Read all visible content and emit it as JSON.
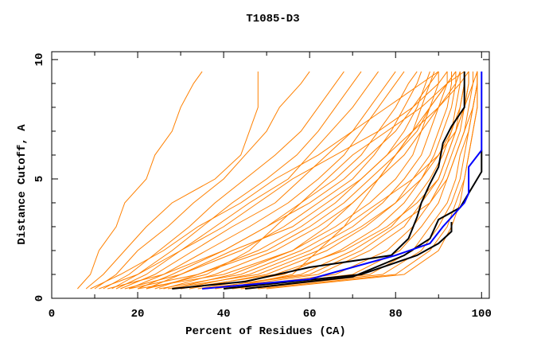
{
  "chart_data": {
    "type": "line",
    "title": "T1085-D3",
    "xlabel": "Percent of Residues (CA)",
    "ylabel": "Distance Cutoff, A",
    "xlim": [
      0,
      101.8
    ],
    "ylim": [
      0,
      10.33
    ],
    "xticks": [
      0,
      20,
      40,
      60,
      80,
      100
    ],
    "yticks": [
      0,
      5,
      10
    ],
    "grid": false,
    "colors": {
      "models": "#ff8000",
      "highlight_black": "#000000",
      "highlight_blue": "#0000ff"
    },
    "orange_cutoffs": [
      0.4,
      1,
      2,
      3,
      4,
      5,
      6,
      7,
      8,
      9,
      9.5
    ],
    "orange_series_x": [
      [
        6,
        9,
        11,
        15,
        17,
        22,
        24,
        28,
        30,
        33,
        35
      ],
      [
        8,
        12,
        17,
        22,
        28,
        38,
        44,
        46,
        48,
        48,
        48
      ],
      [
        10,
        15,
        20,
        27,
        33,
        40,
        45,
        50,
        53,
        58,
        60
      ],
      [
        12,
        18,
        25,
        32,
        38,
        45,
        52,
        58,
        62,
        66,
        68
      ],
      [
        14,
        20,
        28,
        35,
        42,
        50,
        57,
        62,
        66,
        70,
        72
      ],
      [
        15,
        22,
        30,
        38,
        46,
        55,
        60,
        65,
        70,
        74,
        76
      ],
      [
        16,
        24,
        33,
        42,
        52,
        58,
        64,
        70,
        74,
        78,
        80
      ],
      [
        18,
        26,
        36,
        46,
        55,
        62,
        68,
        72,
        76,
        80,
        82
      ],
      [
        20,
        28,
        40,
        50,
        58,
        66,
        72,
        76,
        80,
        83,
        85
      ],
      [
        22,
        30,
        44,
        54,
        62,
        70,
        75,
        79,
        82,
        85,
        86
      ],
      [
        24,
        34,
        48,
        58,
        66,
        72,
        78,
        82,
        85,
        87,
        88
      ],
      [
        26,
        38,
        52,
        62,
        70,
        76,
        80,
        84,
        86,
        88,
        89
      ],
      [
        28,
        42,
        56,
        66,
        74,
        80,
        84,
        86,
        88,
        90,
        90
      ],
      [
        30,
        46,
        60,
        70,
        77,
        82,
        86,
        88,
        90,
        92,
        92
      ],
      [
        32,
        50,
        64,
        73,
        80,
        84,
        88,
        90,
        92,
        93,
        93
      ],
      [
        34,
        54,
        67,
        76,
        82,
        86,
        89,
        91,
        93,
        94,
        94
      ],
      [
        36,
        58,
        70,
        79,
        84,
        88,
        91,
        93,
        94,
        95,
        95
      ],
      [
        38,
        62,
        74,
        82,
        86,
        90,
        92,
        94,
        95,
        96,
        96
      ],
      [
        40,
        66,
        78,
        84,
        88,
        91,
        93,
        95,
        96,
        97,
        97
      ],
      [
        42,
        70,
        81,
        86,
        90,
        92,
        94,
        96,
        97,
        98,
        98
      ],
      [
        44,
        74,
        84,
        88,
        92,
        94,
        95,
        97,
        98,
        99,
        99
      ],
      [
        46,
        77,
        86,
        90,
        93,
        95,
        96,
        97,
        98,
        99,
        99
      ],
      [
        48,
        80,
        88,
        92,
        94,
        96,
        97,
        98,
        99,
        99,
        99
      ],
      [
        50,
        82,
        90,
        93,
        95,
        96,
        97,
        98,
        99,
        99,
        99
      ],
      [
        20,
        40,
        56,
        64,
        70,
        76,
        82,
        86,
        90,
        94,
        95
      ],
      [
        25,
        44,
        58,
        68,
        76,
        84,
        90,
        93,
        95,
        96,
        96
      ],
      [
        18,
        34,
        50,
        60,
        68,
        74,
        80,
        85,
        88,
        92,
        94
      ],
      [
        30,
        52,
        68,
        78,
        85,
        90,
        92,
        94,
        96,
        97,
        97
      ],
      [
        22,
        36,
        46,
        52,
        58,
        64,
        70,
        78,
        86,
        92,
        96
      ],
      [
        35,
        60,
        72,
        80,
        88,
        92,
        94,
        96,
        98,
        99,
        99
      ],
      [
        11,
        20,
        30,
        40,
        48,
        56,
        66,
        76,
        84,
        90,
        92
      ],
      [
        40,
        56,
        62,
        68,
        72,
        76,
        80,
        84,
        88,
        92,
        94
      ],
      [
        9,
        16,
        26,
        34,
        44,
        52,
        62,
        70,
        78,
        86,
        90
      ],
      [
        13,
        26,
        40,
        50,
        60,
        68,
        74,
        80,
        84,
        88,
        90
      ],
      [
        17,
        30,
        42,
        56,
        64,
        72,
        78,
        84,
        90,
        95,
        97
      ],
      [
        27,
        48,
        62,
        72,
        80,
        86,
        90,
        94,
        96,
        98,
        99
      ]
    ],
    "highlight_series": [
      {
        "name": "black-1",
        "color": "#000000",
        "points": [
          [
            28,
            0.4
          ],
          [
            45,
            0.7
          ],
          [
            60,
            1.3
          ],
          [
            79,
            1.8
          ],
          [
            83,
            2.5
          ],
          [
            85,
            3.4
          ],
          [
            86,
            4
          ],
          [
            88,
            4.8
          ],
          [
            90,
            5.5
          ],
          [
            91,
            6.5
          ],
          [
            93,
            7.2
          ],
          [
            96,
            8
          ],
          [
            96,
            9.5
          ]
        ]
      },
      {
        "name": "black-2",
        "color": "#000000",
        "points": [
          [
            45,
            0.4
          ],
          [
            70,
            0.9
          ],
          [
            82,
            1.8
          ],
          [
            88,
            2.5
          ],
          [
            90,
            3.3
          ],
          [
            95,
            3.8
          ],
          [
            100,
            5.3
          ],
          [
            100,
            6.2
          ]
        ]
      },
      {
        "name": "black-3",
        "color": "#000000",
        "points": [
          [
            40,
            0.4
          ],
          [
            72,
            1.0
          ],
          [
            85,
            1.8
          ],
          [
            90,
            2.3
          ],
          [
            93,
            2.8
          ],
          [
            93,
            3.2
          ]
        ]
      },
      {
        "name": "blue-1",
        "color": "#0000ff",
        "points": [
          [
            35,
            0.4
          ],
          [
            60,
            0.8
          ],
          [
            80,
            1.8
          ],
          [
            88,
            2.3
          ],
          [
            91,
            3.0
          ],
          [
            93,
            3.4
          ],
          [
            96,
            4.0
          ],
          [
            97,
            4.4
          ],
          [
            97,
            5.5
          ],
          [
            100,
            6.2
          ],
          [
            100,
            9.5
          ]
        ]
      }
    ]
  }
}
